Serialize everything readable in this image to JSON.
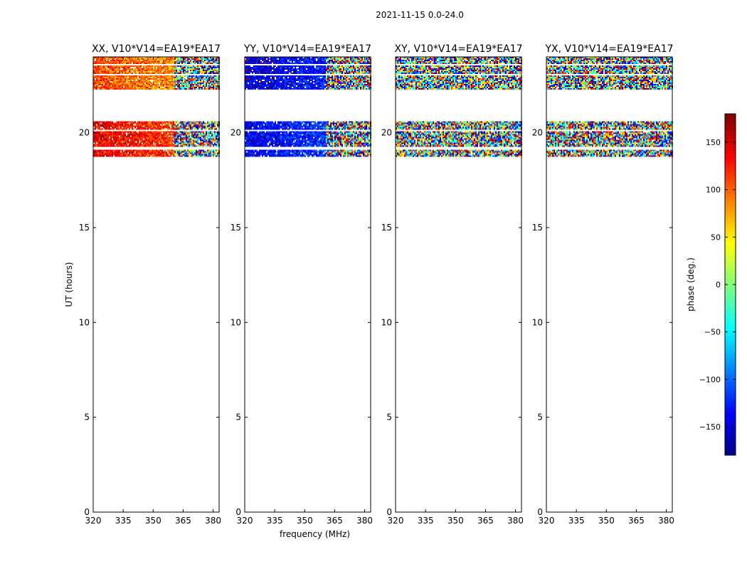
{
  "figure": {
    "suptitle": "2021-11-15 0.0-24.0",
    "xlabel": "frequency (MHz)",
    "ylabel": "UT (hours)",
    "colorbar": {
      "label": "phase (deg.)",
      "ticks": [
        "150",
        "100",
        "50",
        "0",
        "−50",
        "−100",
        "−150"
      ],
      "tick_values": [
        150,
        100,
        50,
        0,
        -50,
        -100,
        -150
      ],
      "range": [
        -180,
        180
      ],
      "colormap": "jet"
    }
  },
  "chart_data": [
    {
      "type": "heatmap",
      "title": "XX, V10*V14=EA19*EA17",
      "xlabel": "",
      "ylabel": "UT (hours)",
      "xlim": [
        320,
        383
      ],
      "ylim": [
        0,
        24
      ],
      "xticks": [
        "320",
        "335",
        "350",
        "365",
        "380"
      ],
      "xtick_values": [
        320,
        335,
        350,
        365,
        380
      ],
      "yticks": [
        "0",
        "5",
        "10",
        "15",
        "20"
      ],
      "ytick_values": [
        0,
        5,
        10,
        15,
        20
      ],
      "data_blocks": [
        {
          "y_range": [
            18.8,
            20.6
          ],
          "mean_phase_deg": 140,
          "coherent_until_mhz": 360
        },
        {
          "y_range": [
            22.3,
            24.0
          ],
          "mean_phase_deg": 110,
          "coherent_until_mhz": 360
        }
      ]
    },
    {
      "type": "heatmap",
      "title": "YY, V10*V14=EA19*EA17",
      "xlabel": "frequency (MHz)",
      "ylabel": "",
      "xlim": [
        320,
        383
      ],
      "ylim": [
        0,
        24
      ],
      "xticks": [
        "320",
        "335",
        "350",
        "365",
        "380"
      ],
      "xtick_values": [
        320,
        335,
        350,
        365,
        380
      ],
      "yticks": [
        "0",
        "5",
        "10",
        "15",
        "20"
      ],
      "ytick_values": [
        0,
        5,
        10,
        15,
        20
      ],
      "data_blocks": [
        {
          "y_range": [
            18.8,
            20.6
          ],
          "mean_phase_deg": -140,
          "coherent_until_mhz": 360
        },
        {
          "y_range": [
            22.3,
            24.0
          ],
          "mean_phase_deg": -150,
          "coherent_until_mhz": 360
        }
      ]
    },
    {
      "type": "heatmap",
      "title": "XY, V10*V14=EA19*EA17",
      "xlabel": "",
      "ylabel": "",
      "xlim": [
        320,
        383
      ],
      "ylim": [
        0,
        24
      ],
      "xticks": [
        "320",
        "335",
        "350",
        "365",
        "380"
      ],
      "xtick_values": [
        320,
        335,
        350,
        365,
        380
      ],
      "yticks": [
        "0",
        "5",
        "10",
        "15",
        "20"
      ],
      "ytick_values": [
        0,
        5,
        10,
        15,
        20
      ],
      "data_blocks": [
        {
          "y_range": [
            18.8,
            20.6
          ],
          "mean_phase_deg": null,
          "coherent_until_mhz": 320
        },
        {
          "y_range": [
            22.3,
            24.0
          ],
          "mean_phase_deg": null,
          "coherent_until_mhz": 320
        }
      ]
    },
    {
      "type": "heatmap",
      "title": "YX, V10*V14=EA19*EA17",
      "xlabel": "",
      "ylabel": "",
      "xlim": [
        320,
        383
      ],
      "ylim": [
        0,
        24
      ],
      "xticks": [
        "320",
        "335",
        "350",
        "365",
        "380"
      ],
      "xtick_values": [
        320,
        335,
        350,
        365,
        380
      ],
      "yticks": [
        "0",
        "5",
        "10",
        "15",
        "20"
      ],
      "ytick_values": [
        0,
        5,
        10,
        15,
        20
      ],
      "data_blocks": [
        {
          "y_range": [
            18.8,
            20.6
          ],
          "mean_phase_deg": null,
          "coherent_until_mhz": 320
        },
        {
          "y_range": [
            22.3,
            24.0
          ],
          "mean_phase_deg": null,
          "coherent_until_mhz": 320
        }
      ]
    }
  ]
}
